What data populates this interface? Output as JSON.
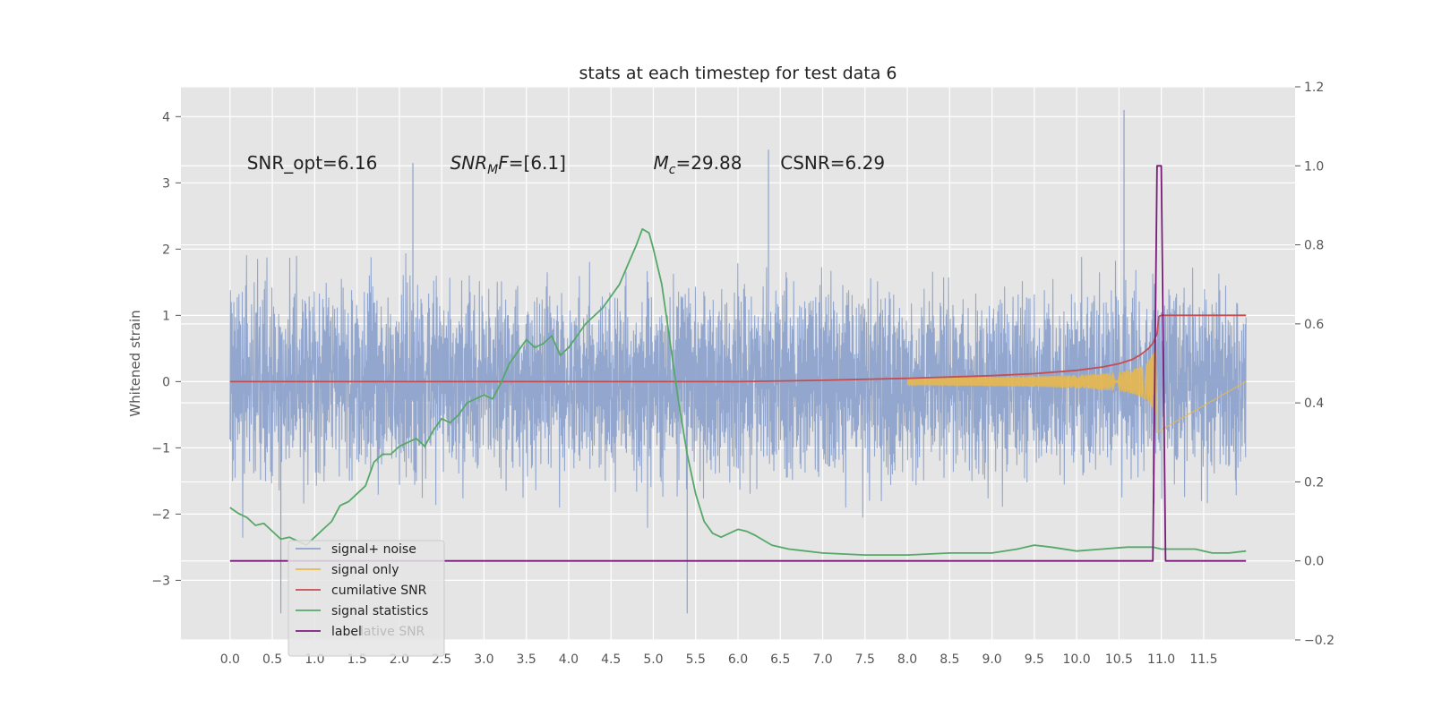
{
  "chart_data": {
    "type": "line",
    "title": "stats at each timestep for test data 6",
    "ylabel": "Whitened strain",
    "y2label": "",
    "xlim": [
      -0.58,
      12.58
    ],
    "ylim": [
      -3.9,
      4.45
    ],
    "y2lim": [
      -0.2,
      1.2
    ],
    "x_ticks": [
      0.0,
      0.5,
      1.0,
      1.5,
      2.0,
      2.5,
      3.0,
      3.5,
      4.0,
      4.5,
      5.0,
      5.5,
      6.0,
      6.5,
      7.0,
      7.5,
      8.0,
      8.5,
      9.0,
      9.5,
      10.0,
      10.5,
      11.0,
      11.5
    ],
    "x_tick_labels": [
      "0.0",
      "0.5",
      "1.0",
      "1.5",
      "2.0",
      "2.5",
      "3.0",
      "3.5",
      "4.0",
      "4.5",
      "5.0",
      "5.5",
      "6.0",
      "6.5",
      "7.0",
      "7.5",
      "8.0",
      "8.5",
      "9.0",
      "9.5",
      "10.0",
      "10.5",
      "11.0",
      "11.5"
    ],
    "y_ticks": [
      -3,
      -2,
      -1,
      0,
      1,
      2,
      3,
      4
    ],
    "y_tick_labels": [
      "−3",
      "−2",
      "−1",
      "0",
      "1",
      "2",
      "3",
      "4"
    ],
    "y2_ticks": [
      -0.2,
      0.0,
      0.2,
      0.4,
      0.6,
      0.8,
      1.0,
      1.2
    ],
    "y2_tick_labels": [
      "−0.2",
      "0.0",
      "0.2",
      "0.4",
      "0.6",
      "0.8",
      "1.0",
      "1.2"
    ],
    "grid": true,
    "legend_position": "bottom-left",
    "annotations": [
      {
        "parts": [
          {
            "t": "SNR_opt=6.16",
            "style": "normal"
          }
        ],
        "x": 0.2,
        "y": 3.3
      },
      {
        "parts": [
          {
            "t": "SNR",
            "style": "italic"
          },
          {
            "t": "M",
            "style": "italic-sub"
          },
          {
            "t": "F",
            "style": "italic"
          },
          {
            "t": "=[6.1]",
            "style": "normal"
          }
        ],
        "x": 2.6,
        "y": 3.3
      },
      {
        "parts": [
          {
            "t": "M",
            "style": "italic"
          },
          {
            "t": "c",
            "style": "italic-sub"
          },
          {
            "t": "=29.88",
            "style": "normal"
          }
        ],
        "x": 5.0,
        "y": 3.3
      },
      {
        "parts": [
          {
            "t": "CSNR=6.29",
            "style": "normal"
          }
        ],
        "x": 6.5,
        "y": 3.3
      }
    ],
    "legend_ghost_text": "lative SNR",
    "series": [
      {
        "name": "signal+ noise",
        "axis": "left",
        "color": "#8ea3cc",
        "kind": "noise",
        "x_range": [
          0.0,
          12.0
        ],
        "n_points": 2400,
        "envelope": 1.85,
        "spikes_max": [
          3.3,
          3.5,
          4.1
        ],
        "spikes_min": [
          -3.5,
          -3.5
        ]
      },
      {
        "name": "signal only",
        "axis": "left",
        "color": "#e8b84c",
        "kind": "chirp",
        "x_range": [
          8.0,
          10.95
        ],
        "peak_time": 10.95,
        "peak_amplitude": 0.85
      },
      {
        "name": "cumilative SNR",
        "axis": "left",
        "color": "#c44e52",
        "points": [
          [
            0.0,
            0.0
          ],
          [
            6.0,
            0.0
          ],
          [
            7.0,
            0.02
          ],
          [
            8.0,
            0.05
          ],
          [
            9.0,
            0.09
          ],
          [
            9.5,
            0.12
          ],
          [
            10.0,
            0.17
          ],
          [
            10.3,
            0.22
          ],
          [
            10.5,
            0.27
          ],
          [
            10.65,
            0.33
          ],
          [
            10.75,
            0.4
          ],
          [
            10.85,
            0.5
          ],
          [
            10.9,
            0.58
          ],
          [
            10.95,
            0.72
          ],
          [
            10.97,
            0.98
          ],
          [
            11.0,
            1.0
          ],
          [
            12.0,
            1.0
          ]
        ]
      },
      {
        "name": "signal statistics",
        "axis": "right",
        "color": "#55a868",
        "points": [
          [
            0.0,
            0.135
          ],
          [
            0.1,
            0.12
          ],
          [
            0.2,
            0.11
          ],
          [
            0.3,
            0.09
          ],
          [
            0.4,
            0.095
          ],
          [
            0.5,
            0.075
          ],
          [
            0.6,
            0.055
          ],
          [
            0.7,
            0.06
          ],
          [
            0.8,
            0.05
          ],
          [
            0.9,
            0.04
          ],
          [
            1.0,
            0.06
          ],
          [
            1.1,
            0.08
          ],
          [
            1.2,
            0.1
          ],
          [
            1.3,
            0.14
          ],
          [
            1.4,
            0.15
          ],
          [
            1.5,
            0.17
          ],
          [
            1.6,
            0.19
          ],
          [
            1.7,
            0.25
          ],
          [
            1.8,
            0.27
          ],
          [
            1.9,
            0.27
          ],
          [
            2.0,
            0.29
          ],
          [
            2.1,
            0.3
          ],
          [
            2.2,
            0.31
          ],
          [
            2.3,
            0.29
          ],
          [
            2.4,
            0.33
          ],
          [
            2.5,
            0.36
          ],
          [
            2.6,
            0.35
          ],
          [
            2.7,
            0.37
          ],
          [
            2.8,
            0.4
          ],
          [
            2.9,
            0.41
          ],
          [
            3.0,
            0.42
          ],
          [
            3.1,
            0.41
          ],
          [
            3.2,
            0.45
          ],
          [
            3.3,
            0.5
          ],
          [
            3.4,
            0.53
          ],
          [
            3.5,
            0.56
          ],
          [
            3.6,
            0.54
          ],
          [
            3.7,
            0.55
          ],
          [
            3.8,
            0.57
          ],
          [
            3.9,
            0.52
          ],
          [
            4.0,
            0.54
          ],
          [
            4.1,
            0.57
          ],
          [
            4.2,
            0.6
          ],
          [
            4.3,
            0.62
          ],
          [
            4.4,
            0.64
          ],
          [
            4.5,
            0.67
          ],
          [
            4.6,
            0.7
          ],
          [
            4.7,
            0.75
          ],
          [
            4.8,
            0.8
          ],
          [
            4.87,
            0.84
          ],
          [
            4.95,
            0.83
          ],
          [
            5.0,
            0.79
          ],
          [
            5.1,
            0.7
          ],
          [
            5.2,
            0.55
          ],
          [
            5.3,
            0.4
          ],
          [
            5.4,
            0.27
          ],
          [
            5.5,
            0.17
          ],
          [
            5.6,
            0.1
          ],
          [
            5.7,
            0.07
          ],
          [
            5.8,
            0.06
          ],
          [
            5.9,
            0.07
          ],
          [
            6.0,
            0.08
          ],
          [
            6.1,
            0.075
          ],
          [
            6.2,
            0.065
          ],
          [
            6.4,
            0.04
          ],
          [
            6.6,
            0.03
          ],
          [
            7.0,
            0.02
          ],
          [
            7.5,
            0.015
          ],
          [
            8.0,
            0.015
          ],
          [
            8.5,
            0.02
          ],
          [
            9.0,
            0.02
          ],
          [
            9.3,
            0.03
          ],
          [
            9.5,
            0.04
          ],
          [
            9.7,
            0.035
          ],
          [
            10.0,
            0.025
          ],
          [
            10.3,
            0.03
          ],
          [
            10.6,
            0.035
          ],
          [
            10.9,
            0.035
          ],
          [
            11.0,
            0.03
          ],
          [
            11.2,
            0.03
          ],
          [
            11.4,
            0.03
          ],
          [
            11.6,
            0.02
          ],
          [
            11.8,
            0.02
          ],
          [
            12.0,
            0.025
          ]
        ]
      },
      {
        "name": "label",
        "axis": "right",
        "color": "#7a1a7a",
        "points": [
          [
            0.0,
            0.0
          ],
          [
            10.9,
            0.0
          ],
          [
            10.95,
            1.0
          ],
          [
            11.0,
            1.0
          ],
          [
            11.05,
            0.0
          ],
          [
            12.0,
            0.0
          ]
        ]
      }
    ]
  }
}
